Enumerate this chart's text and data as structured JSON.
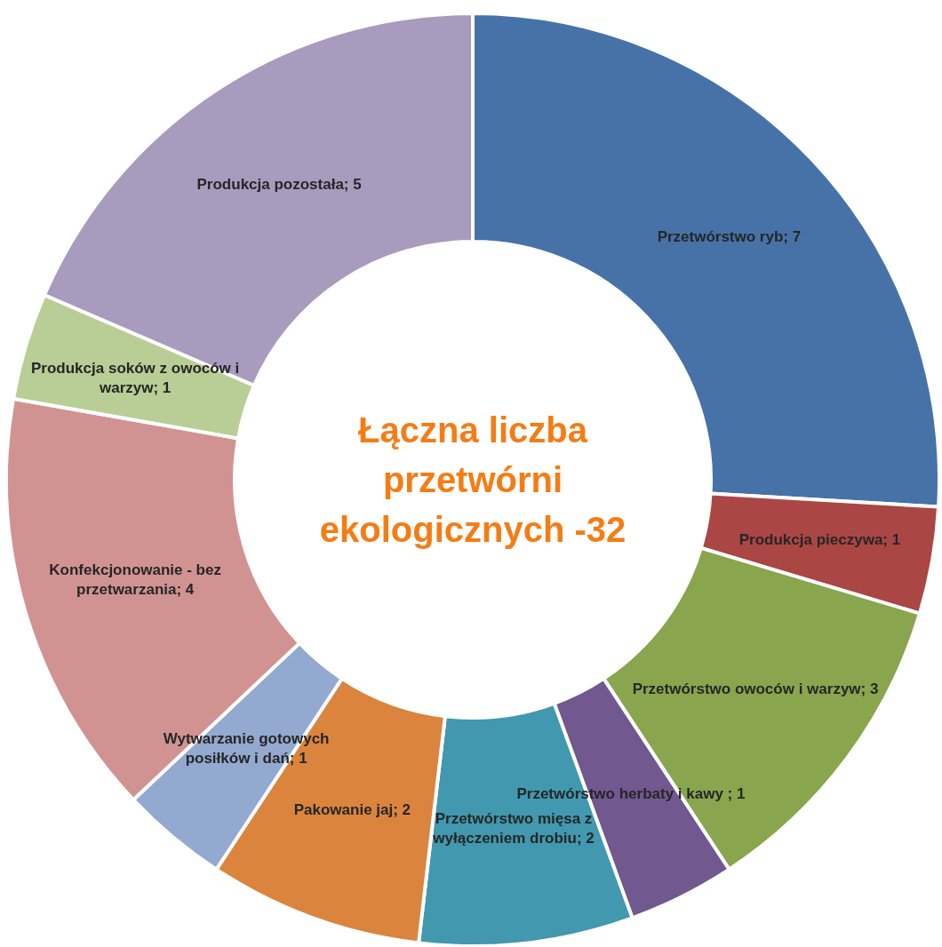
{
  "chart_data": {
    "type": "donut",
    "title": "Łączna liczba przetwórni ekologicznych -32",
    "categories": [
      "Przetwórstwo ryb",
      "Produkcja pieczywa",
      "Przetwórstwo owoców i warzyw",
      "Przetwórstwo herbaty i kawy ",
      "Przetwórstwo mięsa z wyłączeniem drobiu",
      "Pakowanie jaj",
      "Wytwarzanie gotowych posiłków i dań",
      "Konfekcjonowanie - bez przetwarzania",
      "Produkcja soków  z owoców i warzyw",
      "Produkcja pozostała"
    ],
    "values": [
      7,
      1,
      3,
      1,
      2,
      2,
      1,
      4,
      1,
      5
    ],
    "colors": [
      "#4672a8",
      "#aa4644",
      "#89a54e",
      "#71588f",
      "#4198af",
      "#db843d",
      "#93a9cf",
      "#d19392",
      "#b9cd96",
      "#a99bbd"
    ],
    "value_labels": [
      "; 7",
      "; 1",
      "; 3",
      "; 1",
      "; 2",
      "; 2",
      "; 1",
      "; 4",
      "; 1",
      "; 5"
    ]
  }
}
